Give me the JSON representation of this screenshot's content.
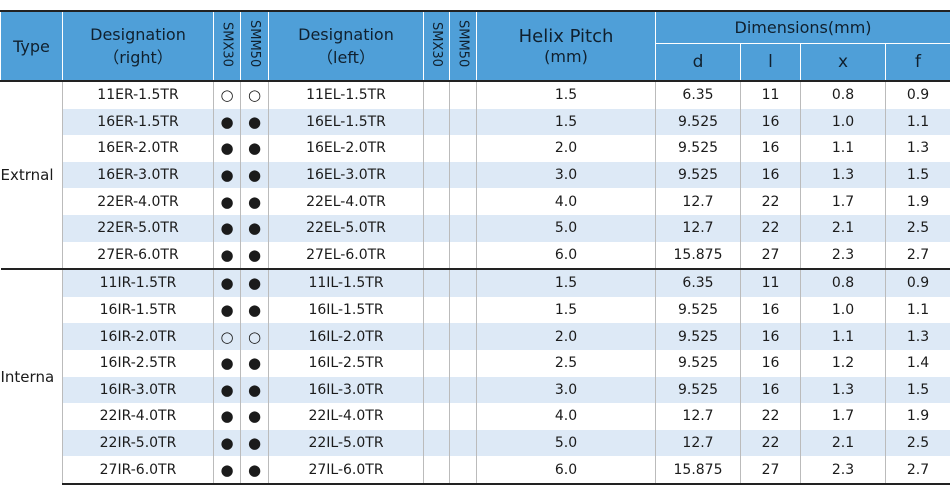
{
  "header": {
    "type": "Type",
    "designation_right": [
      "Designation",
      "（right）"
    ],
    "smx30_right": "SMX30",
    "smm50_right": "SMM50",
    "designation_left": [
      "Designation",
      "（left）"
    ],
    "smx30_left": "SMX30",
    "smm50_left": "SMM50",
    "helix_pitch": [
      "Helix Pitch",
      "(mm)"
    ],
    "dimensions": "Dimensions(mm)",
    "d": "d",
    "l": "l",
    "x": "x",
    "f": "f"
  },
  "groups": [
    {
      "type": "Extrnal",
      "rows": [
        [
          "11ER-1.5TR",
          "○",
          "○",
          "11EL-1.5TR",
          "1.5",
          "6.35",
          "11",
          "0.8",
          "0.9"
        ],
        [
          "16ER-1.5TR",
          "●",
          "●",
          "16EL-1.5TR",
          "1.5",
          "9.525",
          "16",
          "1.0",
          "1.1"
        ],
        [
          "16ER-2.0TR",
          "●",
          "●",
          "16EL-2.0TR",
          "2.0",
          "9.525",
          "16",
          "1.1",
          "1.3"
        ],
        [
          "16ER-3.0TR",
          "●",
          "●",
          "16EL-3.0TR",
          "3.0",
          "9.525",
          "16",
          "1.3",
          "1.5"
        ],
        [
          "22ER-4.0TR",
          "●",
          "●",
          "22EL-4.0TR",
          "4.0",
          "12.7",
          "22",
          "1.7",
          "1.9"
        ],
        [
          "22ER-5.0TR",
          "●",
          "●",
          "22EL-5.0TR",
          "5.0",
          "12.7",
          "22",
          "2.1",
          "2.5"
        ],
        [
          "27ER-6.0TR",
          "●",
          "●",
          "27EL-6.0TR",
          "6.0",
          "15.875",
          "27",
          "2.3",
          "2.7"
        ]
      ]
    },
    {
      "type": "Interna",
      "rows": [
        [
          "11IR-1.5TR",
          "●",
          "●",
          "11IL-1.5TR",
          "1.5",
          "6.35",
          "11",
          "0.8",
          "0.9"
        ],
        [
          "16IR-1.5TR",
          "●",
          "●",
          "16IL-1.5TR",
          "1.5",
          "9.525",
          "16",
          "1.0",
          "1.1"
        ],
        [
          "16IR-2.0TR",
          "○",
          "○",
          "16IL-2.0TR",
          "2.0",
          "9.525",
          "16",
          "1.1",
          "1.3"
        ],
        [
          "16IR-2.5TR",
          "●",
          "●",
          "16IL-2.5TR",
          "2.5",
          "9.525",
          "16",
          "1.2",
          "1.4"
        ],
        [
          "16IR-3.0TR",
          "●",
          "●",
          "16IL-3.0TR",
          "3.0",
          "9.525",
          "16",
          "1.3",
          "1.5"
        ],
        [
          "22IR-4.0TR",
          "●",
          "●",
          "22IL-4.0TR",
          "4.0",
          "12.7",
          "22",
          "1.7",
          "1.9"
        ],
        [
          "22IR-5.0TR",
          "●",
          "●",
          "22IL-5.0TR",
          "5.0",
          "12.7",
          "22",
          "2.1",
          "2.5"
        ],
        [
          "27IR-6.0TR",
          "●",
          "●",
          "27IL-6.0TR",
          "6.0",
          "15.875",
          "27",
          "2.3",
          "2.7"
        ]
      ]
    }
  ]
}
